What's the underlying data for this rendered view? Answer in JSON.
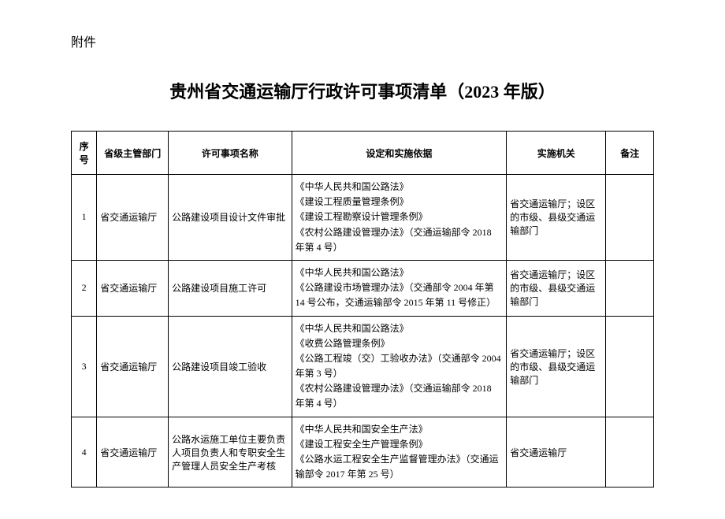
{
  "attachment_label": "附件",
  "page_title": "贵州省交通运输厅行政许可事项清单（2023 年版）",
  "table": {
    "columns": [
      "序号",
      "省级主管部门",
      "许可事项名称",
      "设定和实施依据",
      "实施机关",
      "备注"
    ],
    "rows": [
      {
        "seq": "1",
        "dept": "省交通运输厅",
        "item": "公路建设项目设计文件审批",
        "basis": "《中华人民共和国公路法》\n《建设工程质量管理条例》\n《建设工程勘察设计管理条例》\n《农村公路建设管理办法》（交通运输部令 2018 年第 4 号）",
        "agency": "省交通运输厅；设区的市级、县级交通运输部门",
        "remark": ""
      },
      {
        "seq": "2",
        "dept": "省交通运输厅",
        "item": "公路建设项目施工许可",
        "basis": "《中华人民共和国公路法》\n《公路建设市场管理办法》（交通部令 2004 年第 14 号公布，交通运输部令 2015 年第 11 号修正）",
        "agency": "省交通运输厅；设区的市级、县级交通运输部门",
        "remark": ""
      },
      {
        "seq": "3",
        "dept": "省交通运输厅",
        "item": "公路建设项目竣工验收",
        "basis": "《中华人民共和国公路法》\n《收费公路管理条例》\n《公路工程竣（交）工验收办法》（交通部令 2004 年第 3 号）\n《农村公路建设管理办法》（交通运输部令 2018 年第 4 号）",
        "agency": "省交通运输厅；设区的市级、县级交通运输部门",
        "remark": ""
      },
      {
        "seq": "4",
        "dept": "省交通运输厅",
        "item": "公路水运施工单位主要负责人项目负责人和专职安全生产管理人员安全生产考核",
        "basis": "《中华人民共和国安全生产法》\n《建设工程安全生产管理条例》\n《公路水运工程安全生产监督管理办法》（交通运输部令 2017 年第 25 号）",
        "agency": "省交通运输厅",
        "remark": ""
      }
    ]
  }
}
